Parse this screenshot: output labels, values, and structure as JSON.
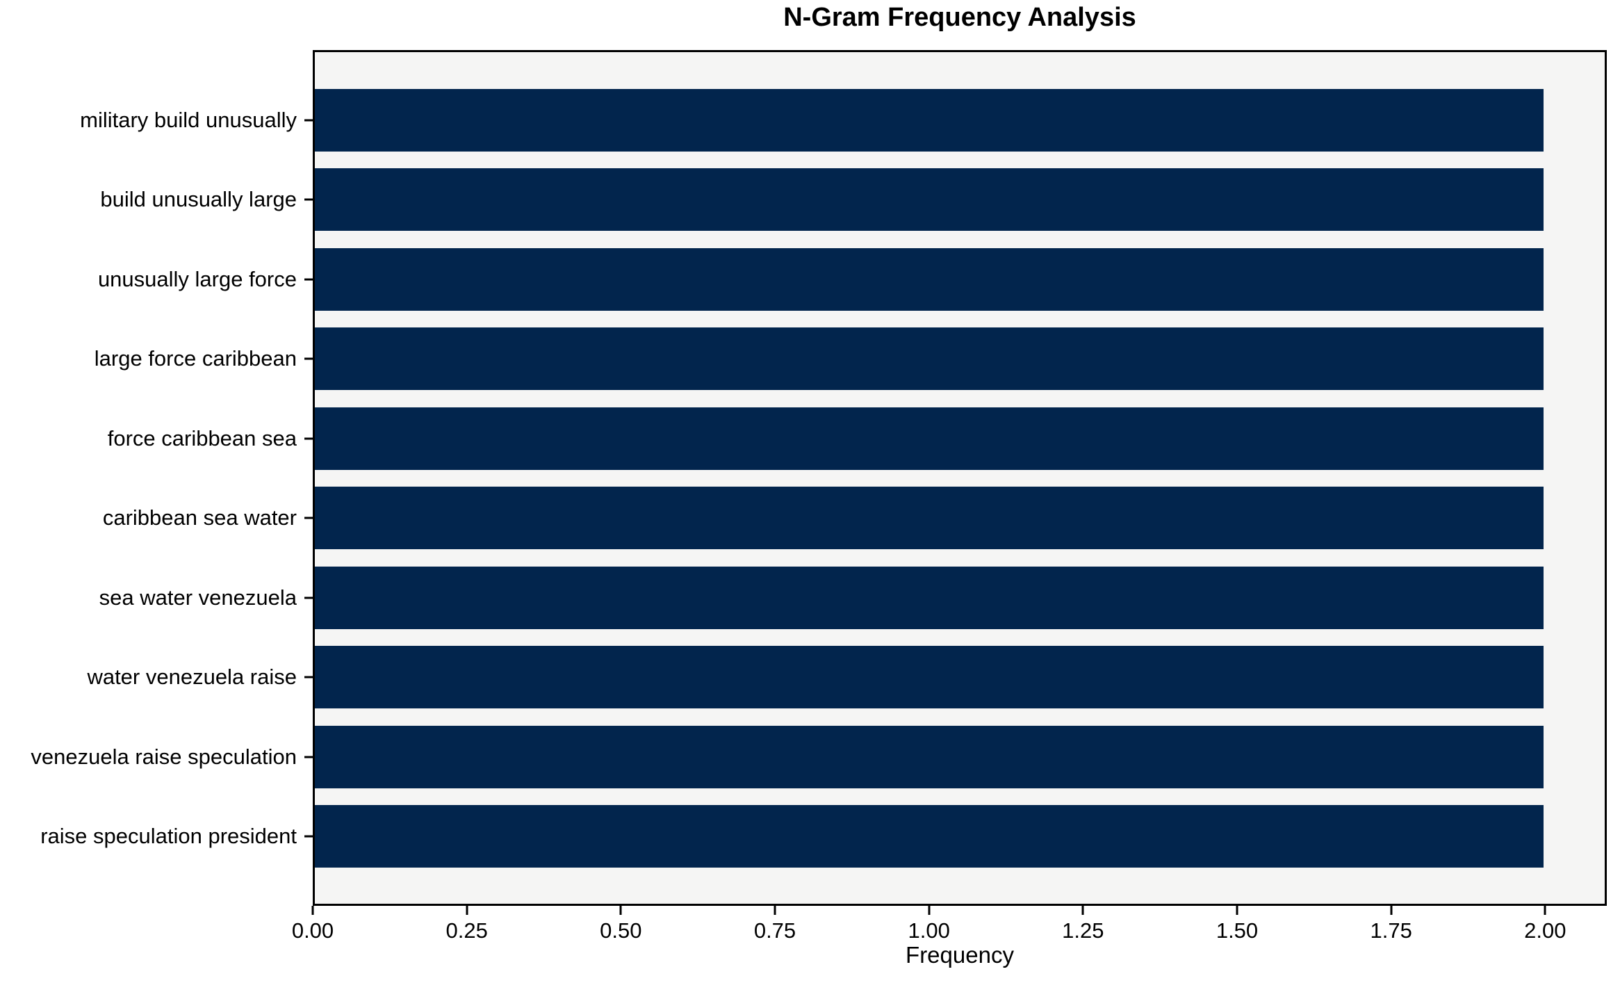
{
  "chart_data": {
    "type": "bar",
    "orientation": "horizontal",
    "title": "N-Gram Frequency Analysis",
    "xlabel": "Frequency",
    "ylabel": "",
    "categories": [
      "military build unusually",
      "build unusually large",
      "unusually large force",
      "large force caribbean",
      "force caribbean sea",
      "caribbean sea water",
      "sea water venezuela",
      "water venezuela raise",
      "venezuela raise speculation",
      "raise speculation president"
    ],
    "values": [
      2,
      2,
      2,
      2,
      2,
      2,
      2,
      2,
      2,
      2
    ],
    "x_ticks": [
      "0.00",
      "0.25",
      "0.50",
      "0.75",
      "1.00",
      "1.25",
      "1.50",
      "1.75",
      "2.00"
    ],
    "x_tick_values": [
      0,
      0.25,
      0.5,
      0.75,
      1.0,
      1.25,
      1.5,
      1.75,
      2.0
    ],
    "xlim": [
      0,
      2.1
    ],
    "grid": false,
    "legend": false,
    "colors": {
      "bar": "#02254d",
      "plot_background": "#f5f5f4",
      "figure_background": "#ffffff",
      "text": "#000000",
      "spine": "#000000"
    }
  }
}
